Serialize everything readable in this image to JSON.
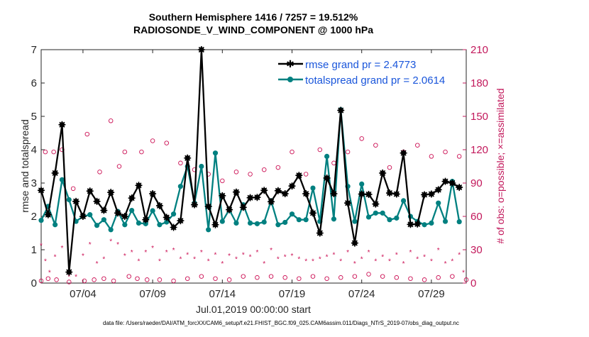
{
  "chart_data": {
    "type": "line",
    "title_line1": "Southern Hemisphere 1416 / 7257 = 19.512%",
    "title_line2": "RADIOSONDE_V_WIND_COMPONENT @ 1000 hPa",
    "xlabel": "Jul.01,2019 00:00:00 start",
    "ylabel_left": "rmse and totalspread",
    "ylabel_right": "# of obs: o=possible; ×=assimilated",
    "footer": "data file: /Users/raeder/DAI/ATM_forcXX/CAM6_setup/f.e21.FHIST_BGC.f09_025.CAM6assim.011/Diags_NTrS_2019-07/obs_diag_output.nc",
    "xlim": [
      1.0,
      31.5
    ],
    "ylim_left": [
      0,
      7
    ],
    "ylim_right": [
      0,
      210
    ],
    "x_ticks": [
      4,
      9,
      14,
      19,
      24,
      29
    ],
    "x_tick_labels": [
      "07/04",
      "07/09",
      "07/14",
      "07/19",
      "07/24",
      "07/29"
    ],
    "y_left_ticks": [
      "0",
      "1",
      "2",
      "3",
      "4",
      "5",
      "6",
      "7"
    ],
    "y_right_ticks": [
      "0",
      "30",
      "60",
      "90",
      "120",
      "150",
      "180",
      "210"
    ],
    "colors": {
      "rmse": "#000000",
      "spread": "#008080",
      "obs": "#cc1155",
      "legend_text": "#1a56db"
    },
    "series": [
      {
        "name": "rmse grand pr = 2.4773",
        "x": [
          1.0,
          1.5,
          2.0,
          2.5,
          3.0,
          3.5,
          4.0,
          4.5,
          5.0,
          5.5,
          6.0,
          6.5,
          7.0,
          7.5,
          8.0,
          8.5,
          9.0,
          9.5,
          10.0,
          10.5,
          11.0,
          11.5,
          12.0,
          12.5,
          13.0,
          13.5,
          14.0,
          14.5,
          15.0,
          15.5,
          16.0,
          16.5,
          17.0,
          17.5,
          18.0,
          18.5,
          19.0,
          19.5,
          20.0,
          20.5,
          21.0,
          21.5,
          22.0,
          22.5,
          23.0,
          23.5,
          24.0,
          24.5,
          25.0,
          25.5,
          26.0,
          26.5,
          27.0,
          27.5,
          28.0,
          28.5,
          29.0,
          29.5,
          30.0,
          30.5,
          31.0
        ],
        "values": [
          2.78,
          2.05,
          3.3,
          4.75,
          0.33,
          2.45,
          2.0,
          2.76,
          2.45,
          2.18,
          2.72,
          2.1,
          2.0,
          2.55,
          2.93,
          1.9,
          2.68,
          2.32,
          1.97,
          1.67,
          1.87,
          3.75,
          2.35,
          7.0,
          2.3,
          1.75,
          2.62,
          2.2,
          2.73,
          2.27,
          2.56,
          2.57,
          2.78,
          2.44,
          2.77,
          2.68,
          2.91,
          3.23,
          2.68,
          2.1,
          1.5,
          3.15,
          2.68,
          5.18,
          2.4,
          1.2,
          2.67,
          2.66,
          2.37,
          3.3,
          2.7,
          2.67,
          3.9,
          1.76,
          1.77,
          2.65,
          2.67,
          2.8,
          3.05,
          3.0,
          2.87
        ]
      },
      {
        "name": "totalspread grand pr = 2.0614",
        "x": [
          1.0,
          1.5,
          2.0,
          2.5,
          3.0,
          3.5,
          4.0,
          4.5,
          5.0,
          5.5,
          6.0,
          6.5,
          7.0,
          7.5,
          8.0,
          8.5,
          9.0,
          9.5,
          10.0,
          10.5,
          11.0,
          11.5,
          12.0,
          12.5,
          13.0,
          13.5,
          14.0,
          14.5,
          15.0,
          15.5,
          16.0,
          16.5,
          17.0,
          17.5,
          18.0,
          18.5,
          19.0,
          19.5,
          20.0,
          20.5,
          21.0,
          21.5,
          22.0,
          22.5,
          23.0,
          23.5,
          24.0,
          24.5,
          25.0,
          25.5,
          26.0,
          26.5,
          27.0,
          27.5,
          28.0,
          28.5,
          29.0,
          29.5,
          30.0,
          30.5,
          31.0
        ],
        "values": [
          1.88,
          2.3,
          1.75,
          3.1,
          2.5,
          1.85,
          2.0,
          2.05,
          1.73,
          1.9,
          1.6,
          2.15,
          1.75,
          2.18,
          1.8,
          1.78,
          2.17,
          1.75,
          1.83,
          2.07,
          2.9,
          3.5,
          2.4,
          3.5,
          1.6,
          3.9,
          1.85,
          2.2,
          1.8,
          2.35,
          1.8,
          1.78,
          1.83,
          2.47,
          1.75,
          1.82,
          2.07,
          1.9,
          1.9,
          2.85,
          1.85,
          3.8,
          1.92,
          5.2,
          2.9,
          1.85,
          2.97,
          1.98,
          2.1,
          2.1,
          1.9,
          1.95,
          2.47,
          2.0,
          1.85,
          1.75,
          1.8,
          2.4,
          1.85,
          3.05,
          1.84
        ]
      },
      {
        "name": "possible",
        "marker": "circle",
        "x": [
          1.0,
          1.3,
          1.5,
          1.9,
          2.1,
          2.5,
          3.0,
          3.3,
          4.1,
          4.3,
          4.8,
          5.2,
          5.5,
          6.0,
          6.2,
          6.6,
          7.0,
          7.3,
          7.9,
          8.2,
          8.6,
          9.0,
          9.5,
          10.0,
          10.5,
          11.0,
          11.5,
          12.0,
          12.5,
          13.0,
          13.5,
          14.0,
          14.5,
          15.0,
          15.5,
          16.0,
          16.5,
          17.0,
          17.5,
          18.0,
          18.5,
          19.0,
          19.5,
          20.0,
          20.5,
          21.0,
          21.5,
          22.0,
          22.5,
          23.0,
          23.5,
          24.0,
          24.5,
          25.0,
          25.5,
          26.0,
          26.5,
          27.0,
          27.5,
          28.0,
          28.5,
          29.0,
          29.5,
          30.0,
          30.5,
          31.0,
          31.5
        ],
        "values": [
          2,
          118,
          4,
          118,
          3,
          120,
          1,
          85,
          2,
          134,
          3,
          100,
          4,
          146,
          2,
          105,
          118,
          6,
          4,
          118,
          3,
          128,
          3,
          126,
          2,
          108,
          4,
          102,
          6,
          98,
          4,
          92,
          3,
          100,
          6,
          98,
          5,
          102,
          6,
          104,
          5,
          118,
          4,
          98,
          6,
          120,
          4,
          108,
          5,
          118,
          6,
          130,
          8,
          124,
          6,
          104,
          5,
          118,
          4,
          124,
          3,
          114,
          5,
          118,
          6,
          114,
          3
        ]
      },
      {
        "name": "assimilated",
        "marker": "asterisk",
        "x": [
          1.0,
          1.3,
          1.6,
          2.0,
          2.5,
          3.0,
          3.5,
          4.0,
          4.5,
          5.0,
          5.5,
          6.0,
          6.5,
          7.0,
          7.5,
          8.0,
          8.5,
          9.0,
          9.5,
          10.0,
          10.5,
          11.0,
          11.5,
          12.0,
          12.5,
          13.0,
          13.5,
          14.0,
          14.5,
          15.0,
          15.5,
          16.0,
          16.5,
          17.0,
          17.5,
          18.0,
          18.5,
          19.0,
          19.5,
          20.0,
          20.5,
          21.0,
          21.5,
          22.0,
          22.5,
          23.0,
          23.5,
          24.0,
          24.5,
          25.0,
          25.5,
          26.0,
          26.5,
          27.0,
          27.5,
          28.0,
          28.5,
          29.0,
          29.5,
          30.0,
          30.5,
          31.0,
          31.3
        ],
        "values": [
          34,
          20,
          10,
          24,
          32,
          6,
          6,
          25,
          35,
          18,
          22,
          38,
          35,
          25,
          28,
          20,
          28,
          32,
          20,
          28,
          30,
          22,
          26,
          22,
          28,
          20,
          26,
          18,
          25,
          22,
          26,
          24,
          28,
          18,
          30,
          22,
          24,
          25,
          22,
          20,
          20,
          22,
          24,
          26,
          20,
          28,
          18,
          22,
          28,
          20,
          24,
          20,
          26,
          18,
          28,
          22,
          24,
          20,
          30,
          18,
          20,
          26,
          10
        ]
      }
    ]
  }
}
